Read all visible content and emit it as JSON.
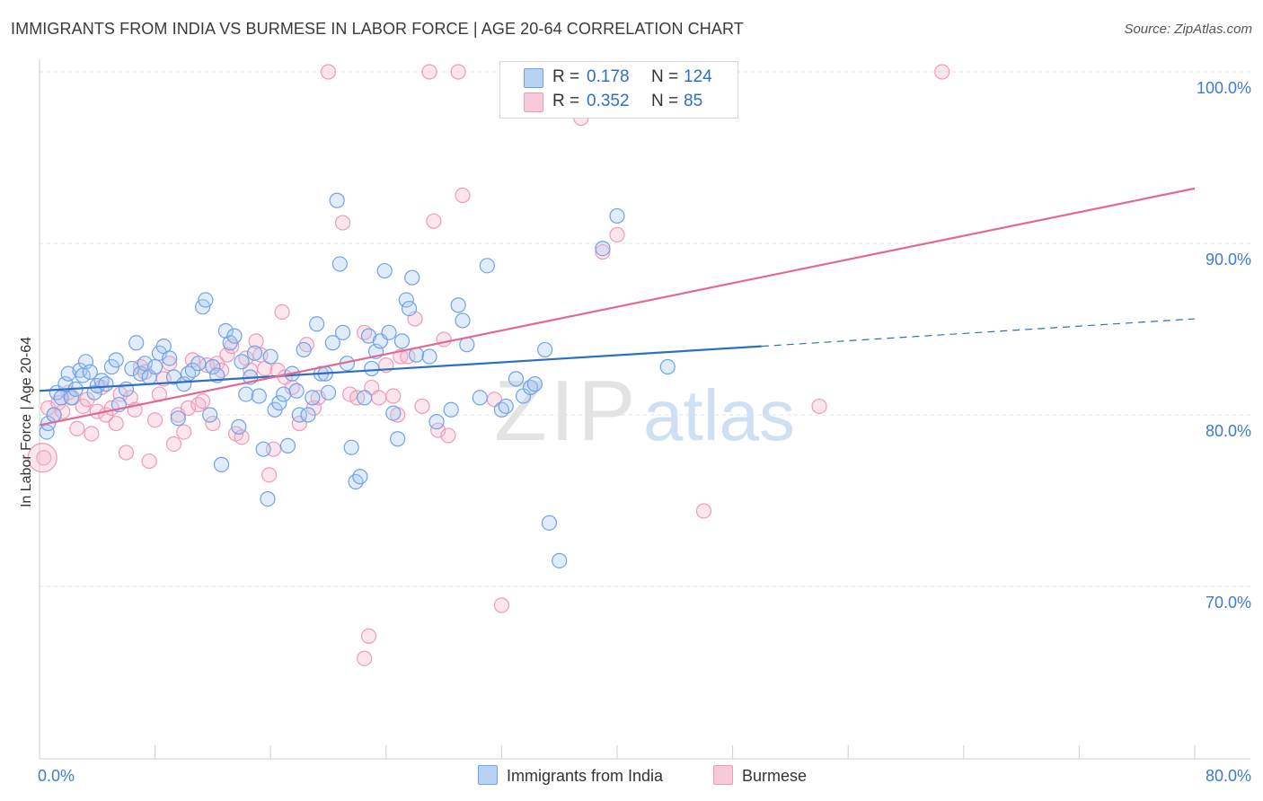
{
  "title": "IMMIGRANTS FROM INDIA VS BURMESE IN LABOR FORCE | AGE 20-64 CORRELATION CHART",
  "source": "Source: ZipAtlas.com",
  "watermark": {
    "zip": "ZIP",
    "atlas": "atlas"
  },
  "stats": [
    {
      "r_label": "R =",
      "r_value": "0.178",
      "n_label": "N =",
      "n_value": "124",
      "color": "#a8c8f0"
    },
    {
      "r_label": "R =",
      "r_value": "0.352",
      "n_label": "N =",
      "n_value": "85",
      "color": "#f4b8cc"
    }
  ],
  "legend": [
    {
      "label": "Immigrants from India",
      "color": "#a8c8f0"
    },
    {
      "label": "Burmese",
      "color": "#f4b8cc"
    }
  ],
  "chart_data": {
    "type": "scatter",
    "title": "IMMIGRANTS FROM INDIA VS BURMESE IN LABOR FORCE | AGE 20-64 CORRELATION CHART",
    "xlabel": "",
    "ylabel": "In Labor Force | Age 20-64",
    "xlim": [
      0,
      80
    ],
    "ylim": [
      62,
      102
    ],
    "x_tick_labels": [
      "0.0%",
      "80.0%"
    ],
    "y_ticks": [
      70,
      80,
      90,
      100
    ],
    "y_tick_labels": [
      "70.0%",
      "80.0%",
      "90.0%",
      "100.0%"
    ],
    "grid": "horizontal dashed",
    "legend_position": "bottom-center",
    "series": [
      {
        "name": "Immigrants from India",
        "color": "#6fa3e8",
        "trend": {
          "x": [
            0,
            50
          ],
          "y": [
            81.4,
            84.0
          ],
          "dashed_to": [
            80,
            85.6
          ],
          "color": "#2e6fc4"
        },
        "points": [
          [
            0.5,
            79.0
          ],
          [
            0.6,
            79.5
          ],
          [
            1.0,
            80.0
          ],
          [
            1.2,
            81.3
          ],
          [
            1.5,
            81.0
          ],
          [
            1.8,
            81.8
          ],
          [
            2.0,
            82.4
          ],
          [
            2.2,
            81.0
          ],
          [
            2.5,
            81.5
          ],
          [
            2.8,
            82.6
          ],
          [
            3.0,
            82.3
          ],
          [
            3.2,
            83.1
          ],
          [
            3.5,
            82.5
          ],
          [
            3.8,
            81.3
          ],
          [
            4.0,
            81.7
          ],
          [
            4.3,
            82.0
          ],
          [
            4.6,
            81.8
          ],
          [
            5.0,
            82.8
          ],
          [
            5.3,
            83.2
          ],
          [
            5.5,
            80.6
          ],
          [
            6.0,
            81.5
          ],
          [
            6.4,
            82.7
          ],
          [
            6.7,
            84.2
          ],
          [
            7.0,
            82.4
          ],
          [
            7.3,
            83.0
          ],
          [
            7.6,
            82.2
          ],
          [
            8.0,
            82.8
          ],
          [
            8.3,
            83.6
          ],
          [
            8.6,
            84.0
          ],
          [
            9.0,
            83.3
          ],
          [
            9.3,
            82.2
          ],
          [
            9.6,
            79.8
          ],
          [
            10.0,
            81.8
          ],
          [
            10.3,
            82.4
          ],
          [
            10.6,
            82.6
          ],
          [
            11.0,
            83.0
          ],
          [
            11.3,
            86.3
          ],
          [
            11.5,
            86.7
          ],
          [
            11.8,
            80.0
          ],
          [
            12.0,
            82.8
          ],
          [
            12.3,
            82.3
          ],
          [
            12.6,
            77.1
          ],
          [
            12.9,
            84.9
          ],
          [
            13.2,
            84.2
          ],
          [
            13.5,
            84.6
          ],
          [
            13.8,
            79.3
          ],
          [
            14.0,
            83.1
          ],
          [
            14.3,
            81.2
          ],
          [
            14.6,
            82.2
          ],
          [
            14.9,
            83.6
          ],
          [
            15.2,
            81.1
          ],
          [
            15.5,
            78.0
          ],
          [
            15.8,
            75.1
          ],
          [
            16.0,
            83.4
          ],
          [
            16.3,
            80.3
          ],
          [
            16.6,
            80.7
          ],
          [
            16.9,
            81.2
          ],
          [
            17.2,
            78.2
          ],
          [
            17.5,
            82.4
          ],
          [
            17.8,
            81.4
          ],
          [
            18.0,
            80.0
          ],
          [
            18.3,
            83.8
          ],
          [
            18.6,
            80.0
          ],
          [
            18.9,
            81.0
          ],
          [
            19.2,
            85.3
          ],
          [
            19.5,
            82.4
          ],
          [
            19.8,
            82.4
          ],
          [
            20.0,
            81.3
          ],
          [
            20.3,
            84.2
          ],
          [
            20.6,
            92.5
          ],
          [
            20.8,
            88.8
          ],
          [
            21.0,
            84.8
          ],
          [
            21.3,
            83.0
          ],
          [
            21.6,
            78.1
          ],
          [
            21.9,
            76.1
          ],
          [
            22.2,
            76.4
          ],
          [
            22.5,
            81.0
          ],
          [
            22.8,
            84.6
          ],
          [
            23.0,
            82.7
          ],
          [
            23.3,
            83.7
          ],
          [
            23.6,
            84.3
          ],
          [
            23.9,
            88.4
          ],
          [
            24.2,
            84.8
          ],
          [
            24.5,
            80.1
          ],
          [
            24.8,
            78.6
          ],
          [
            25.1,
            84.3
          ],
          [
            25.4,
            86.7
          ],
          [
            25.6,
            86.2
          ],
          [
            25.8,
            88.0
          ],
          [
            26.1,
            83.5
          ],
          [
            27.0,
            83.4
          ],
          [
            27.5,
            79.6
          ],
          [
            28.5,
            80.3
          ],
          [
            29.0,
            86.4
          ],
          [
            29.3,
            85.5
          ],
          [
            29.6,
            84.1
          ],
          [
            30.5,
            81.0
          ],
          [
            31.0,
            88.7
          ],
          [
            32.0,
            80.3
          ],
          [
            32.3,
            80.5
          ],
          [
            33.0,
            82.1
          ],
          [
            33.5,
            81.1
          ],
          [
            34.0,
            81.6
          ],
          [
            34.3,
            81.8
          ],
          [
            35.0,
            83.8
          ],
          [
            35.3,
            73.7
          ],
          [
            36.0,
            71.5
          ],
          [
            39.0,
            89.7
          ],
          [
            40.0,
            91.6
          ],
          [
            43.5,
            82.8
          ]
        ]
      },
      {
        "name": "Burmese",
        "color": "#f19ab8",
        "trend": {
          "x": [
            0,
            80
          ],
          "y": [
            79.4,
            93.2
          ],
          "color": "#e06a95"
        },
        "points": [
          [
            0.3,
            77.5
          ],
          [
            0.6,
            80.4
          ],
          [
            1.0,
            80.0
          ],
          [
            1.3,
            80.7
          ],
          [
            1.6,
            80.2
          ],
          [
            2.0,
            81.3
          ],
          [
            2.3,
            81.0
          ],
          [
            2.6,
            79.2
          ],
          [
            3.0,
            80.5
          ],
          [
            3.3,
            80.9
          ],
          [
            3.6,
            78.9
          ],
          [
            4.0,
            80.2
          ],
          [
            4.3,
            81.6
          ],
          [
            4.6,
            80.0
          ],
          [
            5.0,
            80.4
          ],
          [
            5.3,
            79.5
          ],
          [
            5.6,
            81.2
          ],
          [
            6.0,
            77.8
          ],
          [
            6.3,
            81.0
          ],
          [
            6.6,
            80.3
          ],
          [
            7.0,
            82.8
          ],
          [
            7.3,
            82.5
          ],
          [
            7.6,
            77.3
          ],
          [
            8.0,
            79.7
          ],
          [
            8.3,
            81.2
          ],
          [
            8.6,
            82.1
          ],
          [
            9.0,
            83.0
          ],
          [
            9.3,
            78.3
          ],
          [
            9.6,
            80.0
          ],
          [
            10.0,
            79.0
          ],
          [
            10.3,
            80.4
          ],
          [
            10.6,
            83.2
          ],
          [
            11.0,
            80.6
          ],
          [
            11.3,
            80.8
          ],
          [
            11.6,
            82.9
          ],
          [
            12.0,
            79.5
          ],
          [
            12.3,
            83.0
          ],
          [
            12.6,
            82.6
          ],
          [
            13.0,
            83.5
          ],
          [
            13.3,
            84.0
          ],
          [
            13.6,
            78.9
          ],
          [
            14.0,
            78.7
          ],
          [
            14.3,
            83.3
          ],
          [
            14.6,
            82.6
          ],
          [
            15.0,
            84.3
          ],
          [
            15.3,
            83.5
          ],
          [
            15.6,
            82.7
          ],
          [
            15.9,
            76.5
          ],
          [
            16.2,
            78.0
          ],
          [
            16.5,
            82.6
          ],
          [
            16.8,
            86.0
          ],
          [
            17.0,
            82.2
          ],
          [
            17.5,
            81.6
          ],
          [
            18.0,
            79.5
          ],
          [
            18.5,
            84.1
          ],
          [
            19.0,
            80.4
          ],
          [
            19.3,
            81.0
          ],
          [
            20.0,
            100.0
          ],
          [
            21.0,
            91.2
          ],
          [
            21.5,
            81.2
          ],
          [
            22.0,
            81.0
          ],
          [
            22.5,
            84.8
          ],
          [
            23.0,
            81.6
          ],
          [
            23.5,
            81.0
          ],
          [
            24.0,
            82.9
          ],
          [
            24.5,
            81.1
          ],
          [
            24.8,
            80.0
          ],
          [
            25.0,
            83.4
          ],
          [
            25.5,
            83.4
          ],
          [
            26.0,
            85.6
          ],
          [
            26.5,
            80.5
          ],
          [
            27.0,
            100.0
          ],
          [
            27.3,
            91.3
          ],
          [
            27.6,
            79.1
          ],
          [
            28.0,
            84.4
          ],
          [
            28.3,
            78.8
          ],
          [
            29.0,
            100.0
          ],
          [
            29.3,
            92.8
          ],
          [
            31.5,
            80.9
          ],
          [
            32.0,
            68.9
          ],
          [
            37.5,
            97.3
          ],
          [
            39.0,
            89.5
          ],
          [
            40.0,
            90.5
          ],
          [
            46.0,
            74.4
          ],
          [
            54.0,
            80.5
          ],
          [
            62.5,
            100.0
          ],
          [
            22.5,
            65.8
          ],
          [
            22.8,
            67.1
          ]
        ]
      }
    ]
  }
}
